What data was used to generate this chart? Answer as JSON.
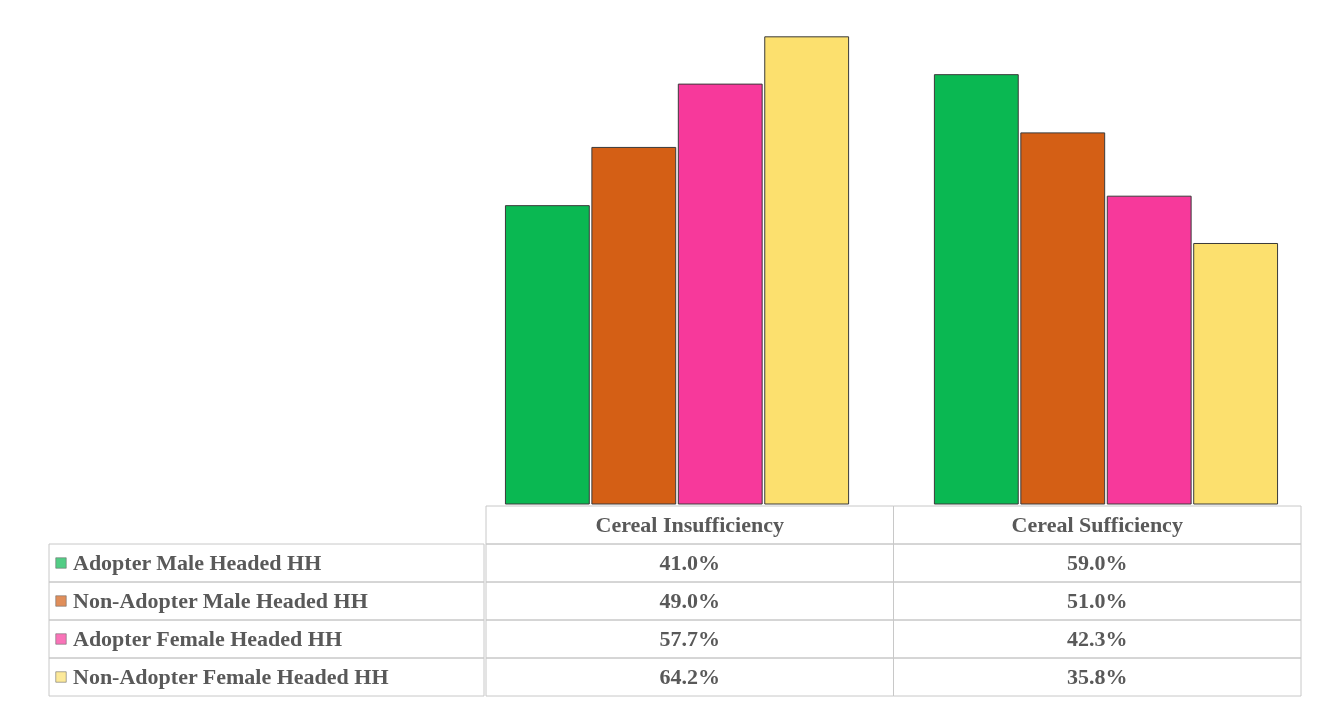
{
  "chart_data": {
    "type": "bar",
    "categories": [
      "Cereal Insufficiency",
      "Cereal Sufficiency"
    ],
    "legend": "bottom left",
    "tick_labels": "x",
    "series": [
      {
        "name": "Adopter Male Headed HH",
        "color": "#0ab852",
        "values": [
          41.0,
          59.0
        ],
        "value_labels": [
          "41.0%",
          "59.0%"
        ]
      },
      {
        "name": "Non-Adopter Male Headed HH",
        "color": "#d45f15",
        "values": [
          49.0,
          51.0
        ],
        "value_labels": [
          "49.0%",
          "51.0%"
        ]
      },
      {
        "name": "Adopter Female Headed HH",
        "color": "#f7399b",
        "values": [
          57.7,
          42.3
        ],
        "value_labels": [
          "57.7%",
          "42.3%"
        ]
      },
      {
        "name": "Non-Adopter Female Headed HH",
        "color": "#fce06e",
        "values": [
          64.2,
          35.8
        ],
        "value_labels": [
          "64.2%",
          "35.8%"
        ]
      }
    ]
  }
}
